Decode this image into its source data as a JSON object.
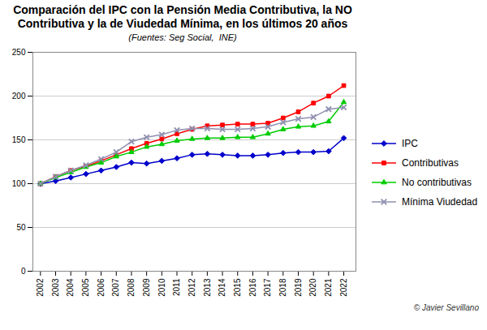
{
  "chart_data": {
    "type": "line",
    "title": "Comparación del IPC con la Pensión Media Contributiva, la NO\nContributiva y la de Viudedad Mínima, en los últimos 20 años",
    "subtitle": "(Fuentes: Seg Social,  INE)",
    "annotations": [
      "© Javier Sevillano"
    ],
    "x": [
      2002,
      2003,
      2004,
      2005,
      2006,
      2007,
      2008,
      2009,
      2010,
      2011,
      2012,
      2013,
      2014,
      2015,
      2016,
      2017,
      2018,
      2019,
      2020,
      2021,
      2022
    ],
    "series": [
      {
        "name": "IPC",
        "color": "#0000cc",
        "marker": "diamond",
        "values": [
          100,
          103,
          107,
          111,
          115,
          119,
          124,
          123,
          126,
          129,
          133,
          134,
          133,
          132,
          132,
          133,
          135,
          136,
          136,
          137,
          152
        ]
      },
      {
        "name": "Contributivas",
        "color": "#ff0000",
        "marker": "square",
        "values": [
          100,
          108,
          115,
          120,
          126,
          133,
          140,
          146,
          151,
          157,
          162,
          166,
          167,
          168,
          168,
          169,
          175,
          182,
          192,
          200,
          212
        ]
      },
      {
        "name": "No contributivas",
        "color": "#00cc00",
        "marker": "triangle",
        "values": [
          100,
          107,
          113,
          119,
          124,
          131,
          136,
          142,
          145,
          149,
          151,
          152,
          152,
          153,
          153,
          157,
          162,
          165,
          166,
          171,
          193
        ]
      },
      {
        "name": "Mínima Viudedad",
        "color": "#9090b0",
        "marker": "x",
        "values": [
          100,
          108,
          115,
          121,
          128,
          136,
          148,
          153,
          156,
          161,
          163,
          163,
          162,
          162,
          163,
          165,
          170,
          174,
          176,
          185,
          187
        ]
      }
    ],
    "xlim": [
      2001.5,
      2022.8
    ],
    "xticks": [
      2002,
      2003,
      2004,
      2005,
      2006,
      2007,
      2008,
      2009,
      2010,
      2011,
      2012,
      2013,
      2014,
      2015,
      2016,
      2017,
      2018,
      2019,
      2020,
      2021,
      2022
    ],
    "ylim": [
      0,
      250
    ],
    "yticks": [
      0,
      50,
      100,
      150,
      200,
      250
    ],
    "grid": true,
    "legend": "right"
  }
}
